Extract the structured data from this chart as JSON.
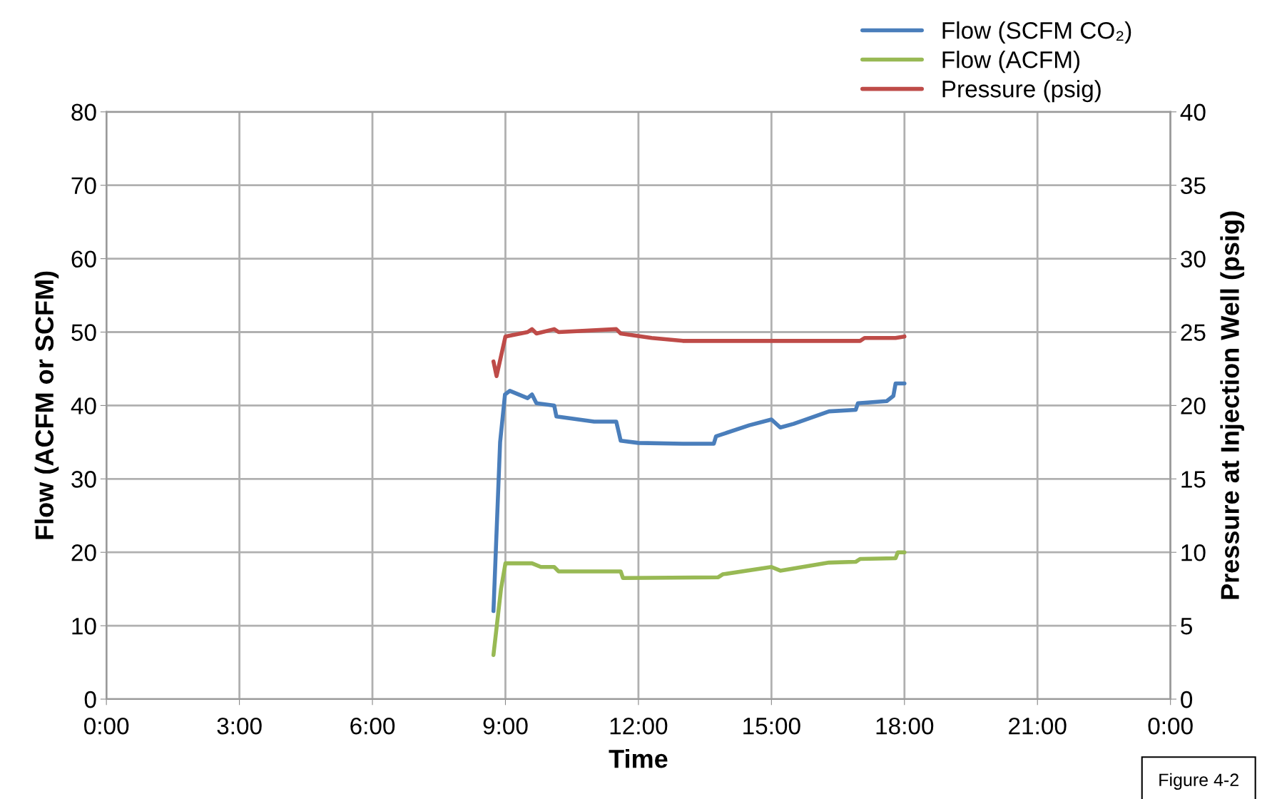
{
  "chart_data": {
    "type": "line",
    "xlabel": "Time",
    "ylabel": "Flow (ACFM or SCFM)",
    "y2label": "Pressure at Injection Well (psig)",
    "xlim": [
      0,
      24
    ],
    "xticks": [
      {
        "value": 0,
        "label": "0:00"
      },
      {
        "value": 3,
        "label": "3:00"
      },
      {
        "value": 6,
        "label": "6:00"
      },
      {
        "value": 9,
        "label": "9:00"
      },
      {
        "value": 12,
        "label": "12:00"
      },
      {
        "value": 15,
        "label": "15:00"
      },
      {
        "value": 18,
        "label": "18:00"
      },
      {
        "value": 21,
        "label": "21:00"
      },
      {
        "value": 24,
        "label": "0:00"
      }
    ],
    "ylim": [
      0,
      80
    ],
    "yticks": [
      0,
      10,
      20,
      30,
      40,
      50,
      60,
      70,
      80
    ],
    "y2lim": [
      0,
      40
    ],
    "y2ticks": [
      0,
      5,
      10,
      15,
      20,
      25,
      30,
      35,
      40
    ],
    "grid": true,
    "legend": "top right",
    "marker": "none",
    "line_style": "solid",
    "annotations": [
      "Figure 4-2"
    ],
    "series": [
      {
        "name": "Flow (SCFM CO₂)",
        "color": "#4a7ebb",
        "x": [
          8.73,
          8.88,
          8.99,
          9.1,
          9.5,
          9.6,
          9.7,
          10.1,
          10.15,
          11.0,
          11.5,
          11.55,
          11.6,
          12.0,
          13.0,
          13.7,
          13.75,
          14.5,
          15.0,
          15.2,
          15.5,
          16.3,
          16.9,
          16.95,
          17.6,
          17.75,
          17.8,
          18.0
        ],
        "values": [
          12,
          35,
          41.5,
          42,
          41,
          41.5,
          40.3,
          40,
          38.5,
          37.8,
          37.8,
          36.5,
          35.2,
          34.9,
          34.8,
          34.8,
          35.8,
          37.3,
          38.1,
          37,
          37.5,
          39.2,
          39.4,
          40.3,
          40.6,
          41.3,
          43,
          43
        ]
      },
      {
        "name": "Flow (ACFM)",
        "color": "#98b954",
        "x": [
          8.73,
          8.9,
          9.0,
          9.6,
          9.8,
          10.1,
          10.2,
          11.6,
          11.65,
          13.8,
          13.9,
          15.0,
          15.2,
          16.3,
          16.9,
          17.0,
          17.8,
          17.85,
          18.0
        ],
        "values": [
          6,
          15,
          18.5,
          18.5,
          18,
          18,
          17.4,
          17.4,
          16.5,
          16.6,
          17,
          18,
          17.5,
          18.6,
          18.7,
          19.1,
          19.2,
          20,
          20
        ]
      },
      {
        "name": "Pressure (psig)",
        "color": "#be4b48",
        "axis": "y2",
        "x": [
          8.73,
          8.8,
          9.0,
          9.5,
          9.6,
          9.7,
          10.1,
          10.2,
          11.5,
          11.6,
          12.3,
          13.0,
          17.0,
          17.1,
          17.8,
          18.0
        ],
        "values": [
          23,
          22,
          24.7,
          25,
          25.2,
          24.9,
          25.2,
          25,
          25.2,
          24.9,
          24.6,
          24.4,
          24.4,
          24.6,
          24.6,
          24.7
        ]
      }
    ]
  }
}
